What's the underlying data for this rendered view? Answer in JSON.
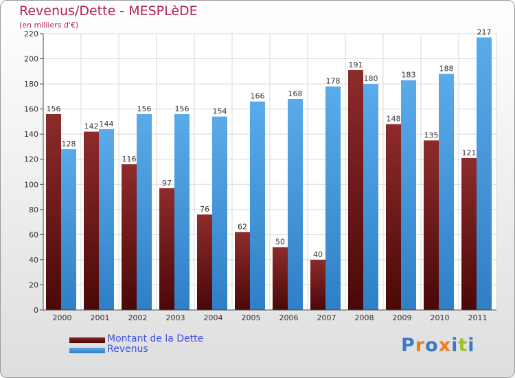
{
  "title": "Revenus/Dette - MESPLèDE",
  "subtitle": "(en milliers d'€)",
  "logo": {
    "text": "Proxiti",
    "letters": [
      "P",
      "r",
      "o",
      "x",
      "i",
      "t",
      "i"
    ],
    "colors": [
      "#3a78c8",
      "#f07c1c",
      "#3a78c8",
      "#f07c1c",
      "#3a78c8",
      "#9ac22c",
      "#3a78c8"
    ]
  },
  "chart_data": {
    "type": "bar",
    "title": "Revenus/Dette - MESPLèDE",
    "subtitle": "(en milliers d'€)",
    "xlabel": "",
    "ylabel": "",
    "ylim": [
      0,
      220
    ],
    "yticks": [
      0,
      20,
      40,
      60,
      80,
      100,
      120,
      140,
      160,
      180,
      200,
      220
    ],
    "grid": true,
    "legend_position": "bottom-left",
    "categories": [
      "2000",
      "2001",
      "2002",
      "2003",
      "2004",
      "2005",
      "2006",
      "2007",
      "2008",
      "2009",
      "2010",
      "2011"
    ],
    "series": [
      {
        "name": "Montant de la Dette",
        "color": "#7a1c1c",
        "values": [
          156,
          142,
          116,
          97,
          76,
          62,
          50,
          40,
          191,
          148,
          135,
          121
        ]
      },
      {
        "name": "Revenus",
        "color": "#4a9be0",
        "values": [
          128,
          144,
          156,
          156,
          154,
          166,
          168,
          178,
          180,
          183,
          188,
          217
        ]
      }
    ]
  }
}
